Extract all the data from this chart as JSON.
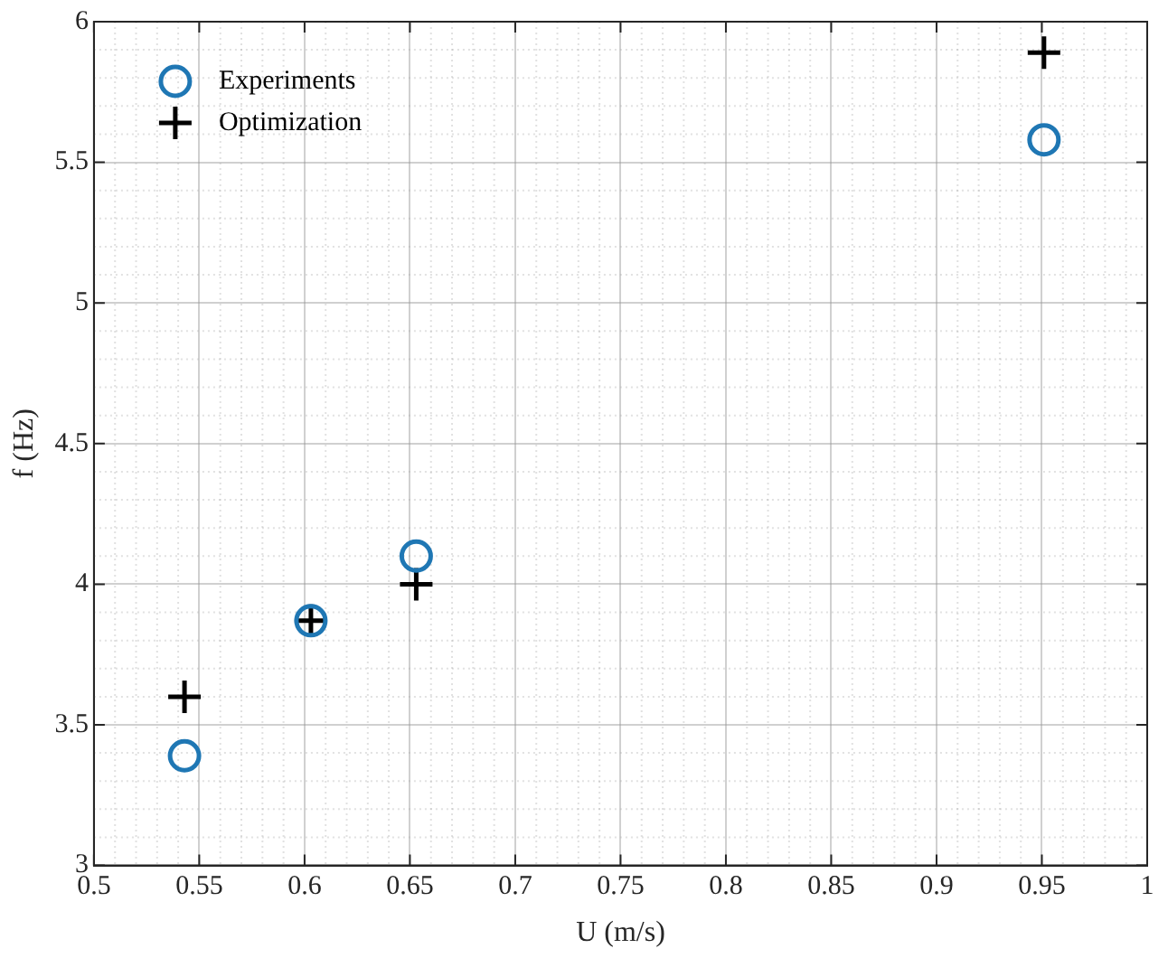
{
  "chart_data": {
    "type": "scatter",
    "xlabel": "U (m/s)",
    "ylabel": "f (Hz)",
    "x": [
      0.543,
      0.603,
      0.653,
      0.951
    ],
    "series": [
      {
        "name": "Experiments",
        "color": "#1f77b4",
        "marker": "circle",
        "values": [
          3.39,
          3.87,
          4.1,
          5.58
        ]
      },
      {
        "name": "Optimization",
        "color": "#000000",
        "marker": "cross",
        "values": [
          3.6,
          3.87,
          4.0,
          5.89
        ]
      }
    ],
    "xlim": [
      0.5,
      1
    ],
    "xticks": [
      0.5,
      0.55,
      0.6,
      0.65,
      0.7,
      0.75,
      0.8,
      0.85,
      0.9,
      0.95,
      1
    ],
    "ylim": [
      3,
      6
    ],
    "yticks": [
      3,
      3.5,
      4,
      4.5,
      5,
      5.5,
      6
    ],
    "grid": true,
    "legend": "top left"
  }
}
